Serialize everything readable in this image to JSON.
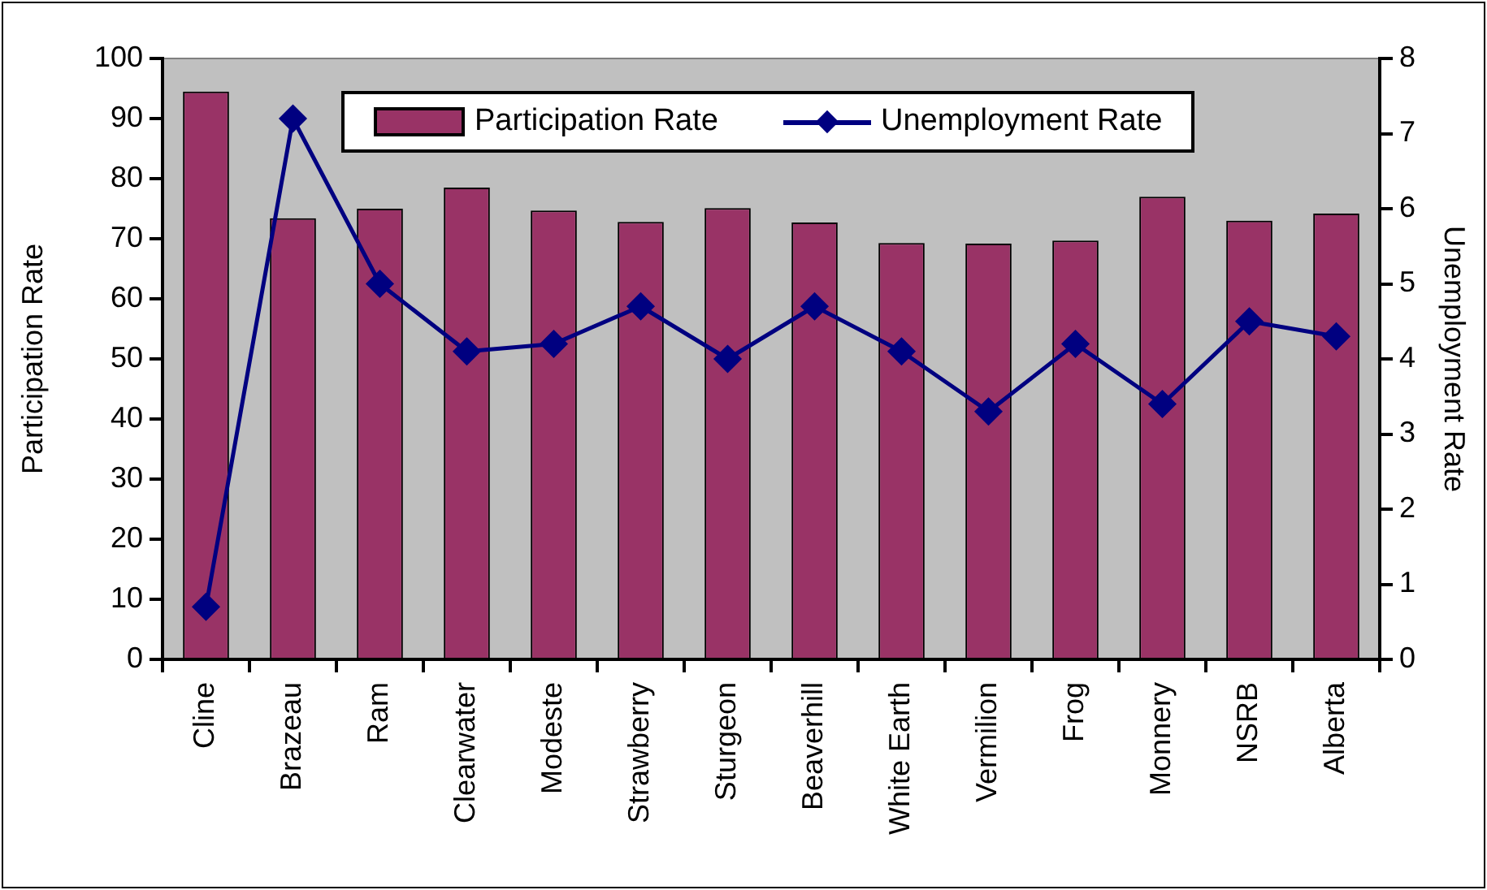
{
  "chart_data": {
    "type": "bar",
    "categories": [
      "Cline",
      "Brazeau",
      "Ram",
      "Clearwater",
      "Modeste",
      "Strawberry",
      "Sturgeon",
      "Beaverhill",
      "White Earth",
      "Vermilion",
      "Frog",
      "Monnery",
      "NSRB",
      "Alberta"
    ],
    "series": [
      {
        "name": "Participation Rate",
        "color": "#993366",
        "values": [
          94.5,
          73.4,
          75.0,
          78.5,
          74.7,
          72.8,
          75.1,
          72.7,
          69.3,
          69.2,
          69.7,
          77.0,
          73.0,
          74.2
        ]
      },
      {
        "name": "Unemployment Rate",
        "type": "line",
        "axis": "y2",
        "color": "#000080",
        "values": [
          0.7,
          7.2,
          5.0,
          4.1,
          4.2,
          4.7,
          4.0,
          4.7,
          4.1,
          3.3,
          4.2,
          3.4,
          4.5,
          4.3
        ]
      }
    ],
    "ylabel": "Participation Rate",
    "y2label": "Unemployment Rate",
    "ylim": [
      0,
      100
    ],
    "yticks": [
      0,
      10,
      20,
      30,
      40,
      50,
      60,
      70,
      80,
      90,
      100
    ],
    "y2lim": [
      0,
      8
    ],
    "y2ticks": [
      0,
      1,
      2,
      3,
      4,
      5,
      6,
      7,
      8
    ],
    "marker": "diamond",
    "legend": "top",
    "grid": false
  }
}
